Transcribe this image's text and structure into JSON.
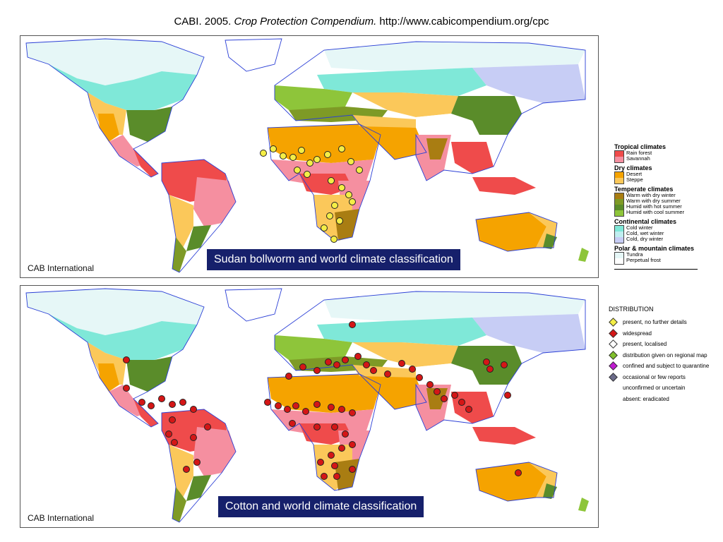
{
  "header": {
    "prefix": "CABI. 2005. ",
    "italic": "Crop Protection Compendium.",
    "suffix": " http://www.cabicompendium.org/cpc"
  },
  "maps": [
    {
      "caption": "Sudan bollworm and world climate classification",
      "credit": "CAB International",
      "marker_color": "#f4ee46"
    },
    {
      "caption": "Cotton and world climate classification",
      "credit": "CAB International",
      "marker_color": "#d41616"
    }
  ],
  "legend": {
    "groups": [
      {
        "title": "Tropical climates",
        "items": [
          {
            "label": "Rain forest",
            "color": "#ef4b4b"
          },
          {
            "label": "Savannah",
            "color": "#f58fa0"
          }
        ]
      },
      {
        "title": "Dry climates",
        "items": [
          {
            "label": "Desert",
            "color": "#f5a300"
          },
          {
            "label": "Steppe",
            "color": "#fbc85a"
          }
        ]
      },
      {
        "title": "Temperate climates",
        "items": [
          {
            "label": "Warm with dry winter",
            "color": "#a97d12"
          },
          {
            "label": "Warm with dry summer",
            "color": "#7e9a26"
          },
          {
            "label": "Humid with hot summer",
            "color": "#5a8c2a"
          },
          {
            "label": "Humid with cool summer",
            "color": "#8ec53a"
          }
        ]
      },
      {
        "title": "Continental climates",
        "items": [
          {
            "label": "Cold winter",
            "color": "#7fe8d8"
          },
          {
            "label": "Cold, wet winter",
            "color": "#bfeef0"
          },
          {
            "label": "Cold, dry winter",
            "color": "#c7cdf5"
          }
        ]
      },
      {
        "title": "Polar & mountain climates",
        "items": [
          {
            "label": "Tundra",
            "color": "#e6f7f7"
          },
          {
            "label": "Perpetual frost",
            "color": "#ffffff"
          }
        ]
      }
    ]
  },
  "distribution": {
    "title": "DISTRIBUTION",
    "items": [
      {
        "label": "present, no further details",
        "icon": "yellow-diamond-icon",
        "color": "#f4ee46"
      },
      {
        "label": "widespread",
        "icon": "red-diamond-icon",
        "color": "#d41616"
      },
      {
        "label": "present, localised",
        "icon": "white-diamond-icon",
        "color": "#ffffff"
      },
      {
        "label": "distribution given on regional map",
        "icon": "green-diamond-icon",
        "color": "#7fbf2a"
      },
      {
        "label": "confined and subject to quarantine",
        "icon": "purple-diamond-icon",
        "color": "#c01ad0"
      },
      {
        "label": "occasional or few reports",
        "icon": "grey-diamond-icon",
        "color": "#6b6b8a"
      },
      {
        "label": "unconfirmed or uncertain",
        "icon": "",
        "color": ""
      },
      {
        "label": "absent: eradicated",
        "icon": "",
        "color": ""
      }
    ]
  }
}
